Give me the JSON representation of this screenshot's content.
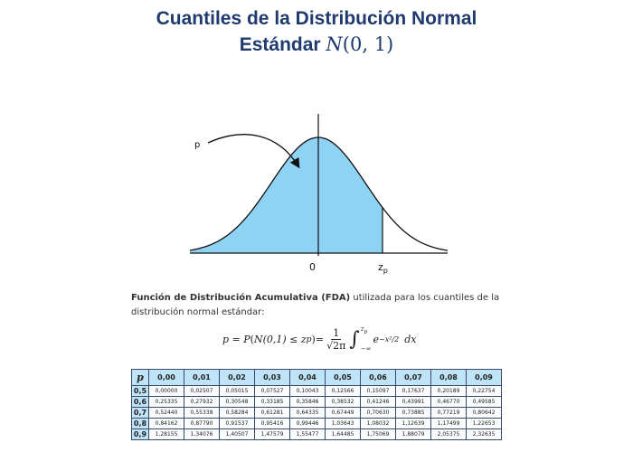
{
  "title": {
    "line1": "Cuantiles de la Distribución Normal",
    "line2_text": "Estándar ",
    "line2_math_symbol": "N",
    "line2_math_args": "(0, 1)"
  },
  "diagram": {
    "label_p": "p",
    "label_zero": "0",
    "label_z": "z",
    "label_z_sub": "p",
    "fill_color": "#8fd3f4"
  },
  "description": {
    "bold": "Función de Distribución Acumulativa (FDA)",
    "rest": " utilizada para los cuantiles de la distribución normal estándar:"
  },
  "formula": {
    "lhs": "p = P",
    "inner": "N(0,1) ≤ z",
    "inner_sub": "p",
    "eq": " =",
    "frac_num": "1",
    "frac_den": "√2π",
    "upper": "z",
    "upper_sub": "p",
    "lower": "−∞",
    "integrand": "e",
    "exponent": "−x²/2",
    "dx": "dx"
  },
  "table": {
    "corner": "p",
    "columns": [
      "0,00",
      "0,01",
      "0,02",
      "0,03",
      "0,04",
      "0,05",
      "0,06",
      "0,07",
      "0,08",
      "0,09"
    ],
    "rows": [
      {
        "p": "0,5",
        "values": [
          "0,00000",
          "0,02507",
          "0,05015",
          "0,07527",
          "0,10043",
          "0,12566",
          "0,15097",
          "0,17637",
          "0,20189",
          "0,22754"
        ]
      },
      {
        "p": "0,6",
        "values": [
          "0,25335",
          "0,27932",
          "0,30548",
          "0,33185",
          "0,35846",
          "0,38532",
          "0,41246",
          "0,43991",
          "0,46770",
          "0,49585"
        ]
      },
      {
        "p": "0,7",
        "values": [
          "0,52440",
          "0,55338",
          "0,58284",
          "0,61281",
          "0,64335",
          "0,67449",
          "0,70630",
          "0,73885",
          "0,77219",
          "0,80642"
        ]
      },
      {
        "p": "0,8",
        "values": [
          "0,84162",
          "0,87790",
          "0,91537",
          "0,95416",
          "0,99446",
          "1,03643",
          "1,08032",
          "1,12639",
          "1,17499",
          "1,22653"
        ]
      },
      {
        "p": "0,9",
        "values": [
          "1,28155",
          "1,34076",
          "1,40507",
          "1,47579",
          "1,55477",
          "1,64485",
          "1,75069",
          "1,88079",
          "2,05375",
          "2,32635"
        ]
      }
    ]
  }
}
